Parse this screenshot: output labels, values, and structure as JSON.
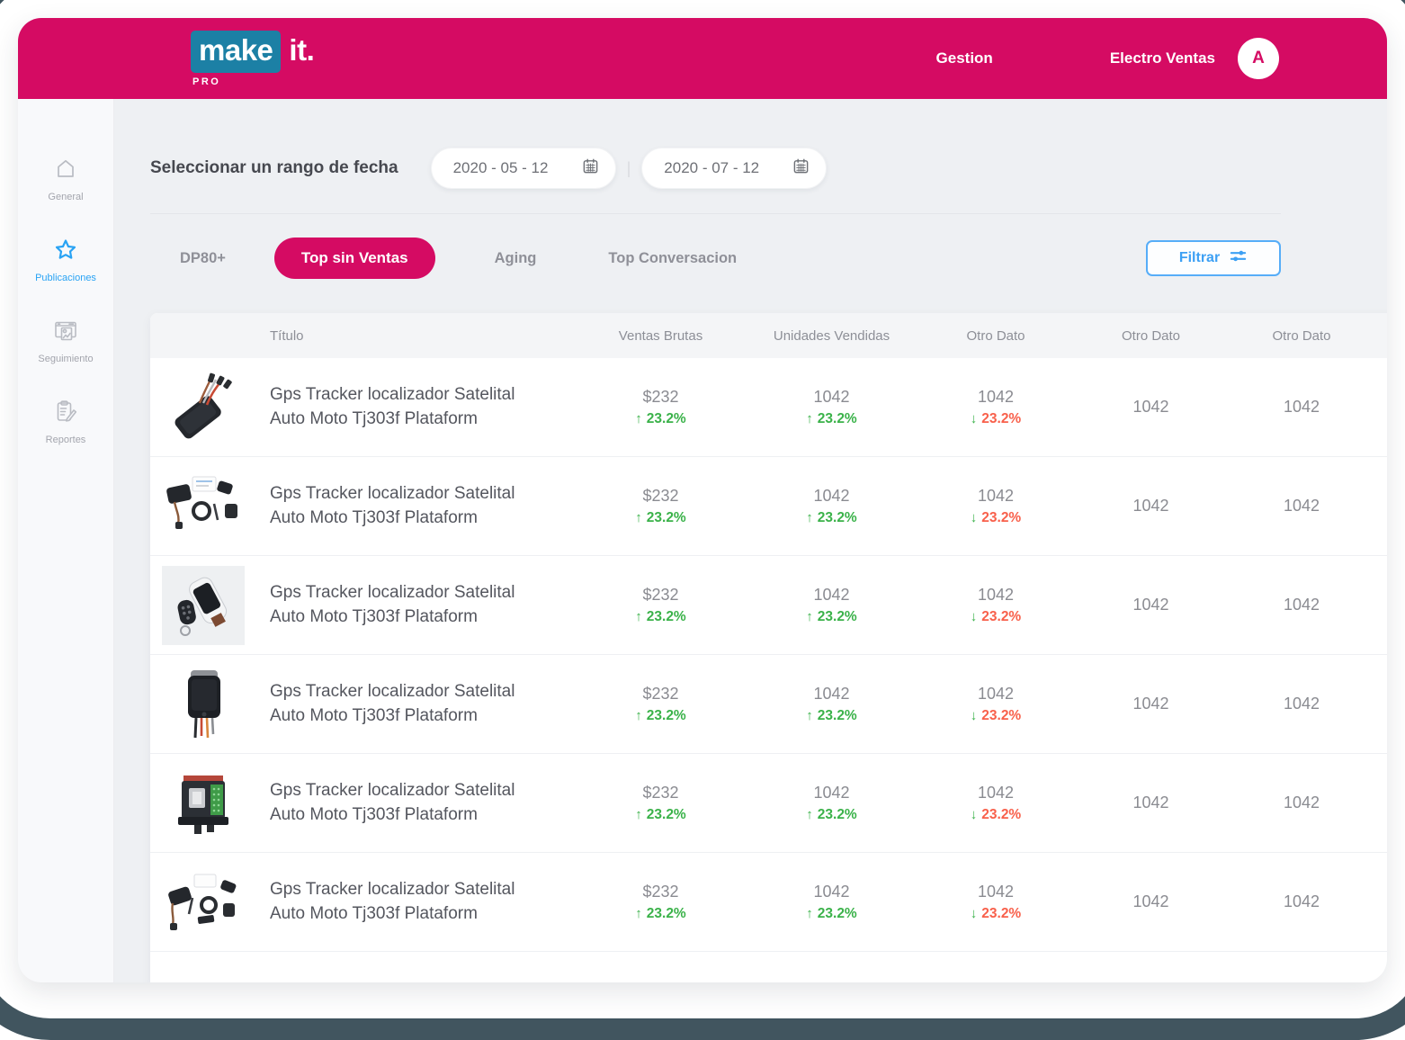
{
  "topbar": {
    "logo_primary": "make",
    "logo_secondary": "it.",
    "logo_badge": "PRO",
    "nav_gestion": "Gestion",
    "account_name": "Electro Ventas",
    "avatar_letter": "A"
  },
  "sidebar": {
    "items": [
      {
        "label": "General",
        "icon": "home-icon",
        "active": false
      },
      {
        "label": "Publicaciones",
        "icon": "star-icon",
        "active": true
      },
      {
        "label": "Seguimiento",
        "icon": "monitor-chart-icon",
        "active": false
      },
      {
        "label": "Reportes",
        "icon": "report-icon",
        "active": false
      }
    ]
  },
  "filters": {
    "date_range_label": "Seleccionar un rango de fecha",
    "date_from": "2020 - 05 - 12",
    "date_separator": "|",
    "date_to": "2020 - 07 - 12",
    "tabs": [
      {
        "label": "DP80+",
        "active": false
      },
      {
        "label": "Top sin Ventas",
        "active": true
      },
      {
        "label": "Aging",
        "active": false
      },
      {
        "label": "Top Conversacion",
        "active": false
      }
    ],
    "filter_button_label": "Filtrar"
  },
  "table": {
    "columns": [
      "Título",
      "Ventas Brutas",
      "Unidades Vendidas",
      "Otro Dato",
      "Otro Dato",
      "Otro Dato"
    ],
    "rows": [
      {
        "image": "gps-tracker-device-photo",
        "title": "Gps Tracker localizador Satelital Auto Moto Tj303f Plataform",
        "ventas_brutas": "$232",
        "ventas_brutas_change": "23.2%",
        "ventas_brutas_trend": "up",
        "unidades_vendidas": "1042",
        "unidades_change": "23.2%",
        "unidades_trend": "up",
        "otro_dato_1": "1042",
        "otro_dato_1_change": "23.2%",
        "otro_dato_1_trend": "down",
        "otro_dato_2": "1042",
        "otro_dato_3": "1042"
      },
      {
        "image": "gps-tracker-kit-photo",
        "title": "Gps Tracker localizador Satelital Auto Moto Tj303f Plataform",
        "ventas_brutas": "$232",
        "ventas_brutas_change": "23.2%",
        "ventas_brutas_trend": "up",
        "unidades_vendidas": "1042",
        "unidades_change": "23.2%",
        "unidades_trend": "up",
        "otro_dato_1": "1042",
        "otro_dato_1_change": "23.2%",
        "otro_dato_1_trend": "down",
        "otro_dato_2": "1042",
        "otro_dato_3": "1042"
      },
      {
        "image": "gps-tracker-remote-photo",
        "title": "Gps Tracker localizador Satelital Auto Moto Tj303f Plataform",
        "ventas_brutas": "$232",
        "ventas_brutas_change": "23.2%",
        "ventas_brutas_trend": "up",
        "unidades_vendidas": "1042",
        "unidades_change": "23.2%",
        "unidades_trend": "up",
        "otro_dato_1": "1042",
        "otro_dato_1_change": "23.2%",
        "otro_dato_1_trend": "down",
        "otro_dato_2": "1042",
        "otro_dato_3": "1042"
      },
      {
        "image": "gps-tracker-box-photo",
        "title": "Gps Tracker localizador Satelital Auto Moto Tj303f Plataform",
        "ventas_brutas": "$232",
        "ventas_brutas_change": "23.2%",
        "ventas_brutas_trend": "up",
        "unidades_vendidas": "1042",
        "unidades_change": "23.2%",
        "unidades_trend": "up",
        "otro_dato_1": "1042",
        "otro_dato_1_change": "23.2%",
        "otro_dato_1_trend": "down",
        "otro_dato_2": "1042",
        "otro_dato_3": "1042"
      },
      {
        "image": "gps-module-pcb-photo",
        "title": "Gps Tracker localizador Satelital Auto Moto Tj303f Plataform",
        "ventas_brutas": "$232",
        "ventas_brutas_change": "23.2%",
        "ventas_brutas_trend": "up",
        "unidades_vendidas": "1042",
        "unidades_change": "23.2%",
        "unidades_trend": "up",
        "otro_dato_1": "1042",
        "otro_dato_1_change": "23.2%",
        "otro_dato_1_trend": "down",
        "otro_dato_2": "1042",
        "otro_dato_3": "1042"
      },
      {
        "image": "gps-tracker-kit2-photo",
        "title": "Gps Tracker localizador Satelital Auto Moto Tj303f Plataform",
        "ventas_brutas": "$232",
        "ventas_brutas_change": "23.2%",
        "ventas_brutas_trend": "up",
        "unidades_vendidas": "1042",
        "unidades_change": "23.2%",
        "unidades_trend": "up",
        "otro_dato_1": "1042",
        "otro_dato_1_change": "23.2%",
        "otro_dato_1_trend": "down",
        "otro_dato_2": "1042",
        "otro_dato_3": "1042"
      }
    ]
  },
  "colors": {
    "brand_pink": "#d50b63",
    "logo_blue": "#1c80a5",
    "accent_blue": "#3da0f4",
    "positive_green": "#3bb24a",
    "negative_red": "#f8604b"
  }
}
